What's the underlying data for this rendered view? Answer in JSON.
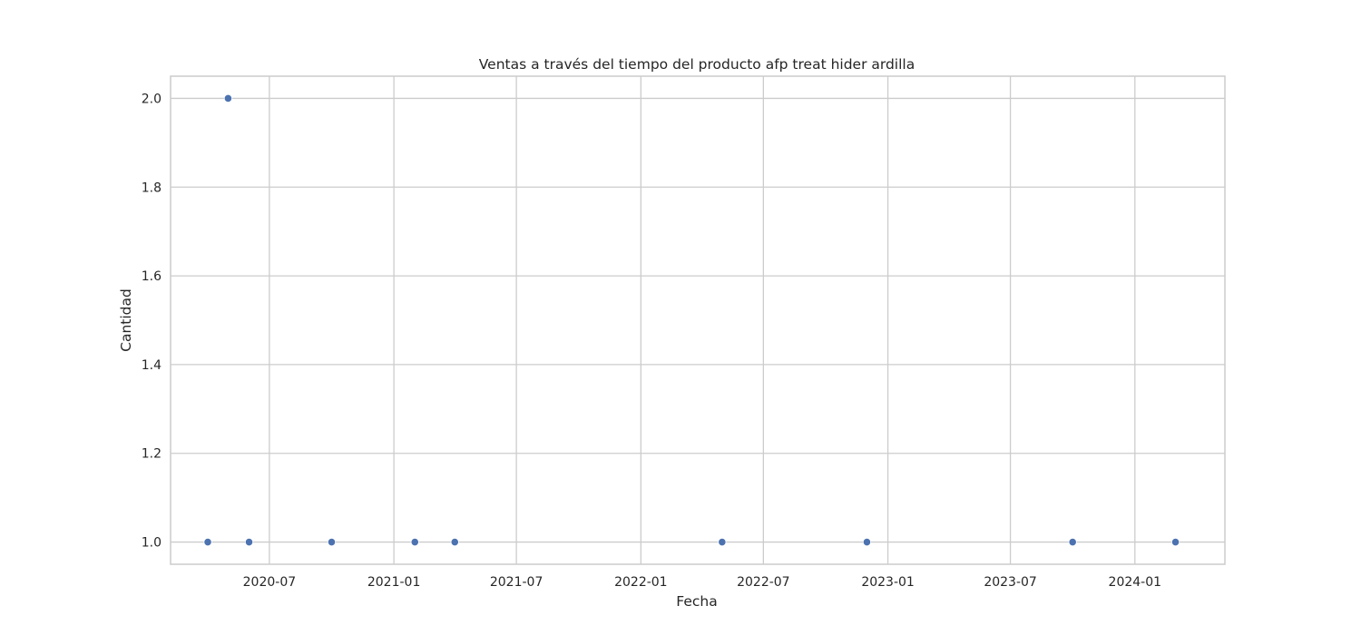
{
  "chart_data": {
    "type": "scatter",
    "title": "Ventas a través del tiempo del producto afp treat hider ardilla",
    "xlabel": "Fecha",
    "ylabel": "Cantidad",
    "x_type": "date",
    "xlim": [
      "2020-02-06",
      "2024-05-13"
    ],
    "ylim": [
      0.95,
      2.05
    ],
    "grid": true,
    "marker_color": "#4c72b0",
    "x_ticks": [
      {
        "value": "2020-07-01",
        "label": "2020-07"
      },
      {
        "value": "2021-01-01",
        "label": "2021-01"
      },
      {
        "value": "2021-07-01",
        "label": "2021-07"
      },
      {
        "value": "2022-01-01",
        "label": "2022-01"
      },
      {
        "value": "2022-07-01",
        "label": "2022-07"
      },
      {
        "value": "2023-01-01",
        "label": "2023-01"
      },
      {
        "value": "2023-07-01",
        "label": "2023-07"
      },
      {
        "value": "2024-01-01",
        "label": "2024-01"
      }
    ],
    "y_ticks": [
      {
        "value": 1.0,
        "label": "1.0"
      },
      {
        "value": 1.2,
        "label": "1.2"
      },
      {
        "value": 1.4,
        "label": "1.4"
      },
      {
        "value": 1.6,
        "label": "1.6"
      },
      {
        "value": 1.8,
        "label": "1.8"
      },
      {
        "value": 2.0,
        "label": "2.0"
      }
    ],
    "points": [
      {
        "x": "2020-04-01",
        "y": 1
      },
      {
        "x": "2020-05-01",
        "y": 2
      },
      {
        "x": "2020-06-01",
        "y": 1
      },
      {
        "x": "2020-10-01",
        "y": 1
      },
      {
        "x": "2021-02-01",
        "y": 1
      },
      {
        "x": "2021-04-01",
        "y": 1
      },
      {
        "x": "2022-05-01",
        "y": 1
      },
      {
        "x": "2022-12-01",
        "y": 1
      },
      {
        "x": "2023-10-01",
        "y": 1
      },
      {
        "x": "2024-03-01",
        "y": 1
      }
    ]
  }
}
